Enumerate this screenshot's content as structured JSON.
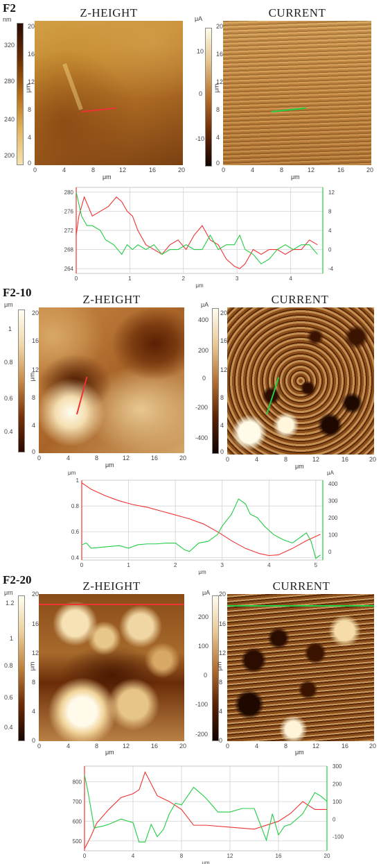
{
  "sections": [
    {
      "label": "F2",
      "zheight": {
        "title": "Z-HEIGHT",
        "cbar_unit": "nm",
        "cbar_ticks": [
          "320",
          "280",
          "240",
          "200"
        ],
        "axis_ticks_y": [
          "20",
          "16",
          "12",
          "8",
          "4",
          "0"
        ],
        "axis_ticks_x": [
          "0",
          "4",
          "8",
          "12",
          "16",
          "20"
        ],
        "axis_unit": "μm"
      },
      "current": {
        "title": "CURRENT",
        "cbar_unit": "μA",
        "cbar_ticks": [
          "10",
          "0",
          "-10"
        ],
        "axis_ticks_y": [
          "20",
          "16",
          "12",
          "8",
          "4",
          "0"
        ],
        "axis_ticks_x": [
          "0",
          "4",
          "8",
          "12",
          "16",
          "20"
        ],
        "axis_unit": "μm"
      },
      "profile": {
        "left_ticks": [
          "280",
          "276",
          "272",
          "268",
          "264"
        ],
        "right_ticks": [
          "12",
          "8",
          "4",
          "0",
          "-4"
        ],
        "x_ticks": [
          "0",
          "1",
          "2",
          "3",
          "4"
        ],
        "x_unit": "μm"
      }
    },
    {
      "label": "F2-10",
      "zheight": {
        "title": "Z-HEIGHT",
        "cbar_unit": "μm",
        "cbar_ticks": [
          "1",
          "0.8",
          "0.6",
          "0.4"
        ],
        "axis_ticks_y": [
          "20",
          "16",
          "12",
          "8",
          "4",
          "0"
        ],
        "axis_ticks_x": [
          "0",
          "4",
          "8",
          "12",
          "16",
          "20"
        ],
        "axis_unit": "μm"
      },
      "current": {
        "title": "CURRENT",
        "cbar_unit": "μA",
        "cbar_ticks": [
          "400",
          "200",
          "0",
          "-200",
          "-400"
        ],
        "axis_ticks_y": [
          "20",
          "16",
          "12",
          "8",
          "4",
          "0"
        ],
        "axis_ticks_x": [
          "0",
          "4",
          "8",
          "12",
          "16",
          "20"
        ],
        "axis_unit": "μm"
      },
      "profile": {
        "left_unit": "μm",
        "right_unit": "μA",
        "left_ticks": [
          "1",
          "0.8",
          "0.6",
          "0.4"
        ],
        "right_ticks": [
          "400",
          "300",
          "200",
          "100",
          "0"
        ],
        "x_ticks": [
          "0",
          "1",
          "2",
          "3",
          "4",
          "5"
        ],
        "x_unit": "μm"
      }
    },
    {
      "label": "F2-20",
      "zheight": {
        "title": "Z-HEIGHT",
        "cbar_unit": "μm",
        "cbar_ticks": [
          "1.2",
          "1",
          "0.8",
          "0.6",
          "0.4"
        ],
        "axis_ticks_y": [
          "20",
          "16",
          "12",
          "8",
          "4",
          "0"
        ],
        "axis_ticks_x": [
          "0",
          "4",
          "8",
          "12",
          "16",
          "20"
        ],
        "axis_unit": "μm"
      },
      "current": {
        "title": "CURRENT",
        "cbar_unit": "μA",
        "cbar_ticks": [
          "200",
          "100",
          "0",
          "-100",
          "-200"
        ],
        "axis_ticks_y": [
          "20",
          "16",
          "12",
          "8",
          "4",
          "0"
        ],
        "axis_ticks_x": [
          "0",
          "4",
          "8",
          "12",
          "16",
          "20"
        ],
        "axis_unit": "μm"
      },
      "profile": {
        "left_ticks": [
          "800",
          "700",
          "600",
          "500"
        ],
        "right_ticks": [
          "300",
          "200",
          "100",
          "0",
          "-100"
        ],
        "x_ticks": [
          "0",
          "4",
          "8",
          "12",
          "16",
          "20"
        ],
        "x_unit": "μm"
      }
    }
  ],
  "chart_data": [
    {
      "type": "line",
      "series": [
        {
          "color": "#e33",
          "x": [
            0,
            0.05,
            0.15,
            0.3,
            0.45,
            0.6,
            0.75,
            0.85,
            0.95,
            1.05,
            1.15,
            1.3,
            1.45,
            1.6,
            1.75,
            1.9,
            2.05,
            2.2,
            2.35,
            2.5,
            2.65,
            2.8,
            2.95,
            3.05,
            3.15,
            3.3,
            3.45,
            3.6,
            3.75,
            3.9,
            4.05,
            4.2,
            4.35,
            4.5
          ],
          "values": [
            271,
            275,
            279,
            275,
            276,
            277,
            279,
            278,
            276,
            275,
            272,
            269,
            268,
            267,
            269,
            270,
            268,
            271,
            273,
            270,
            269,
            266,
            264.5,
            264,
            265,
            268,
            267,
            268,
            268,
            267,
            268,
            268,
            270,
            269
          ]
        },
        {
          "color": "#2c4",
          "x": [
            0,
            0.1,
            0.2,
            0.3,
            0.45,
            0.55,
            0.7,
            0.85,
            0.95,
            1.05,
            1.15,
            1.3,
            1.45,
            1.6,
            1.75,
            1.9,
            2.05,
            2.2,
            2.35,
            2.5,
            2.65,
            2.8,
            2.95,
            3.05,
            3.15,
            3.3,
            3.45,
            3.6,
            3.75,
            3.9,
            4.05,
            4.2,
            4.35,
            4.5
          ],
          "values": [
            12,
            7,
            5,
            5,
            4,
            2,
            1,
            -1,
            1,
            0,
            1,
            0,
            1,
            -1,
            0,
            0,
            1,
            0,
            0,
            3,
            0,
            1,
            1,
            3,
            0,
            -1,
            -3,
            -2,
            0,
            1,
            0,
            1,
            1,
            -1
          ]
        }
      ]
    },
    {
      "type": "line",
      "series": [
        {
          "color": "#e33",
          "x": [
            0,
            0.2,
            0.5,
            0.8,
            1.1,
            1.4,
            1.7,
            2.0,
            2.3,
            2.6,
            2.9,
            3.2,
            3.5,
            3.8,
            4.0,
            4.2,
            4.5,
            4.8,
            5.1
          ],
          "values": [
            0.98,
            0.93,
            0.88,
            0.84,
            0.81,
            0.79,
            0.76,
            0.73,
            0.7,
            0.66,
            0.6,
            0.53,
            0.47,
            0.43,
            0.415,
            0.42,
            0.47,
            0.53,
            0.58
          ]
        },
        {
          "color": "#2c4",
          "x": [
            0,
            0.1,
            0.2,
            0.4,
            0.6,
            0.8,
            1.0,
            1.2,
            1.4,
            1.6,
            1.8,
            2.0,
            2.2,
            2.3,
            2.5,
            2.7,
            2.9,
            3.0,
            3.2,
            3.35,
            3.5,
            3.6,
            3.75,
            3.9,
            4.1,
            4.3,
            4.5,
            4.7,
            4.8,
            4.9,
            5.0,
            5.1
          ],
          "values": [
            40,
            50,
            20,
            25,
            30,
            35,
            20,
            40,
            45,
            45,
            50,
            50,
            10,
            0,
            50,
            60,
            100,
            150,
            220,
            310,
            280,
            220,
            200,
            150,
            100,
            70,
            50,
            90,
            110,
            60,
            -40,
            -20
          ]
        }
      ]
    },
    {
      "type": "line",
      "series": [
        {
          "color": "#e33",
          "x": [
            0,
            0.5,
            1,
            2,
            3,
            4,
            4.5,
            5,
            5.5,
            6,
            7,
            8,
            9,
            10,
            12,
            14,
            16,
            17,
            18,
            19,
            20
          ],
          "values": [
            460,
            520,
            590,
            660,
            720,
            740,
            760,
            850,
            790,
            730,
            700,
            660,
            580,
            580,
            570,
            560,
            600,
            640,
            700,
            660,
            660
          ]
        },
        {
          "color": "#2c4",
          "x": [
            0,
            0.3,
            0.8,
            1.5,
            2,
            3,
            4,
            4.5,
            5,
            5.5,
            6,
            6.5,
            7,
            7.5,
            8,
            9,
            10,
            11,
            12,
            13,
            14,
            15,
            15.5,
            16,
            16.5,
            17,
            18,
            19,
            19.5,
            20
          ],
          "values": [
            250,
            150,
            -50,
            -40,
            -30,
            0,
            -20,
            -130,
            -130,
            -30,
            -100,
            -60,
            30,
            90,
            80,
            180,
            120,
            40,
            40,
            60,
            60,
            -120,
            30,
            -90,
            -40,
            -30,
            30,
            150,
            130,
            100
          ]
        }
      ]
    }
  ]
}
